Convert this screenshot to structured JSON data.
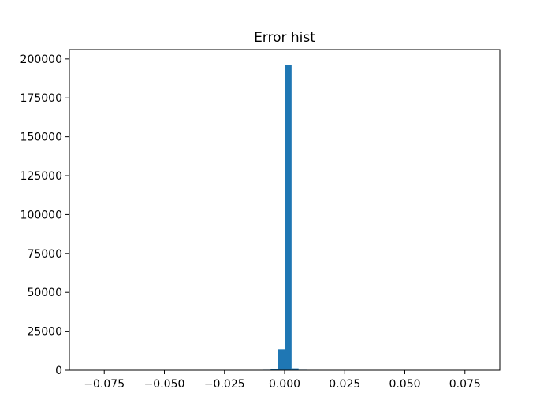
{
  "chart_data": {
    "type": "bar",
    "title": "Error hist",
    "xlabel": "",
    "ylabel": "",
    "xlim": [
      -0.0895,
      0.0895
    ],
    "ylim": [
      0,
      206000
    ],
    "grid": false,
    "bar_color": "#1f77b4",
    "bins": [
      {
        "x0": -0.0092,
        "x1": -0.0058,
        "value": 300
      },
      {
        "x0": -0.0058,
        "x1": -0.0029,
        "value": 1000
      },
      {
        "x0": -0.0029,
        "x1": 0.0,
        "value": 13500
      },
      {
        "x0": 0.0,
        "x1": 0.0029,
        "value": 196000
      },
      {
        "x0": 0.0029,
        "x1": 0.0058,
        "value": 1200
      },
      {
        "x0": 0.0058,
        "x1": 0.0092,
        "value": 300
      }
    ],
    "x_ticks": [
      {
        "value": -0.075,
        "label": "−0.075"
      },
      {
        "value": -0.05,
        "label": "−0.050"
      },
      {
        "value": -0.025,
        "label": "−0.025"
      },
      {
        "value": 0.0,
        "label": "0.000"
      },
      {
        "value": 0.025,
        "label": "0.025"
      },
      {
        "value": 0.05,
        "label": "0.050"
      },
      {
        "value": 0.075,
        "label": "0.075"
      }
    ],
    "y_ticks": [
      {
        "value": 0,
        "label": "0"
      },
      {
        "value": 25000,
        "label": "25000"
      },
      {
        "value": 50000,
        "label": "50000"
      },
      {
        "value": 75000,
        "label": "75000"
      },
      {
        "value": 100000,
        "label": "100000"
      },
      {
        "value": 125000,
        "label": "125000"
      },
      {
        "value": 150000,
        "label": "150000"
      },
      {
        "value": 175000,
        "label": "175000"
      },
      {
        "value": 200000,
        "label": "200000"
      }
    ]
  }
}
